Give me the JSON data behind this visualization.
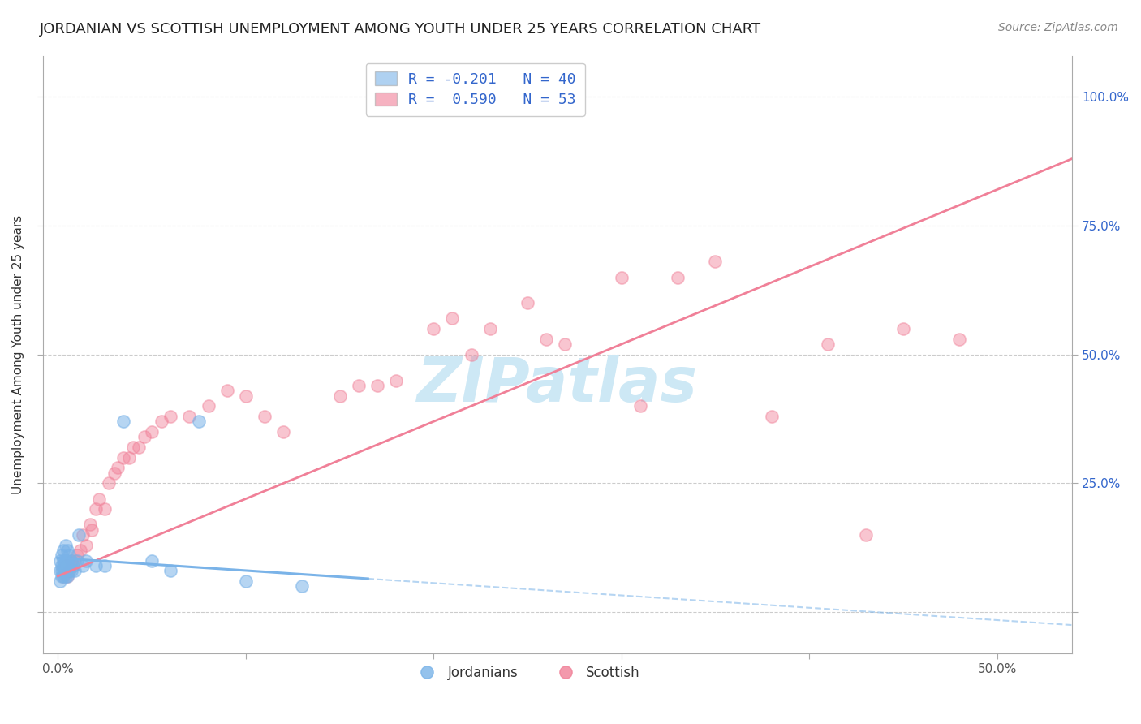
{
  "title": "JORDANIAN VS SCOTTISH UNEMPLOYMENT AMONG YOUTH UNDER 25 YEARS CORRELATION CHART",
  "source": "Source: ZipAtlas.com",
  "ylabel": "Unemployment Among Youth under 25 years",
  "x_ticks": [
    0.0,
    0.1,
    0.2,
    0.3,
    0.4,
    0.5
  ],
  "x_tick_labels": [
    "0.0%",
    "",
    "",
    "",
    "",
    "50.0%"
  ],
  "y_ticks": [
    0.0,
    0.25,
    0.5,
    0.75,
    1.0
  ],
  "y_tick_labels": [
    "",
    "25.0%",
    "50.0%",
    "75.0%",
    "100.0%"
  ],
  "xlim": [
    -0.008,
    0.54
  ],
  "ylim": [
    -0.08,
    1.08
  ],
  "jordan_R": -0.201,
  "jordan_N": 40,
  "scottish_R": 0.59,
  "scottish_N": 53,
  "jordan_color": "#7ab3e8",
  "scottish_color": "#f08098",
  "jordan_scatter_x": [
    0.001,
    0.001,
    0.001,
    0.002,
    0.002,
    0.002,
    0.002,
    0.003,
    0.003,
    0.003,
    0.003,
    0.003,
    0.004,
    0.004,
    0.004,
    0.004,
    0.004,
    0.005,
    0.005,
    0.005,
    0.005,
    0.006,
    0.006,
    0.006,
    0.007,
    0.007,
    0.008,
    0.009,
    0.01,
    0.011,
    0.013,
    0.015,
    0.02,
    0.025,
    0.035,
    0.05,
    0.06,
    0.075,
    0.1,
    0.13
  ],
  "jordan_scatter_y": [
    0.06,
    0.08,
    0.1,
    0.07,
    0.08,
    0.09,
    0.11,
    0.07,
    0.08,
    0.09,
    0.1,
    0.12,
    0.07,
    0.08,
    0.09,
    0.1,
    0.13,
    0.07,
    0.09,
    0.1,
    0.12,
    0.08,
    0.09,
    0.11,
    0.08,
    0.1,
    0.09,
    0.08,
    0.1,
    0.15,
    0.09,
    0.1,
    0.09,
    0.09,
    0.37,
    0.1,
    0.08,
    0.37,
    0.06,
    0.05
  ],
  "scottish_scatter_x": [
    0.003,
    0.004,
    0.005,
    0.006,
    0.007,
    0.008,
    0.009,
    0.01,
    0.012,
    0.013,
    0.015,
    0.017,
    0.018,
    0.02,
    0.022,
    0.025,
    0.027,
    0.03,
    0.032,
    0.035,
    0.038,
    0.04,
    0.043,
    0.046,
    0.05,
    0.055,
    0.06,
    0.07,
    0.08,
    0.09,
    0.1,
    0.11,
    0.12,
    0.15,
    0.16,
    0.17,
    0.18,
    0.2,
    0.21,
    0.22,
    0.23,
    0.25,
    0.26,
    0.27,
    0.3,
    0.31,
    0.33,
    0.35,
    0.38,
    0.41,
    0.43,
    0.45,
    0.48
  ],
  "scottish_scatter_y": [
    0.07,
    0.09,
    0.07,
    0.08,
    0.1,
    0.09,
    0.1,
    0.11,
    0.12,
    0.15,
    0.13,
    0.17,
    0.16,
    0.2,
    0.22,
    0.2,
    0.25,
    0.27,
    0.28,
    0.3,
    0.3,
    0.32,
    0.32,
    0.34,
    0.35,
    0.37,
    0.38,
    0.38,
    0.4,
    0.43,
    0.42,
    0.38,
    0.35,
    0.42,
    0.44,
    0.44,
    0.45,
    0.55,
    0.57,
    0.5,
    0.55,
    0.6,
    0.53,
    0.52,
    0.65,
    0.4,
    0.65,
    0.68,
    0.38,
    0.52,
    0.15,
    0.55,
    0.53
  ],
  "jordan_trend_x0": 0.0,
  "jordan_trend_y0": 0.105,
  "jordan_trend_x1": 0.165,
  "jordan_trend_y1": 0.065,
  "jordan_trend_dash_x0": 0.165,
  "jordan_trend_dash_y0": 0.065,
  "jordan_trend_dash_x1": 0.54,
  "jordan_trend_dash_y1": -0.025,
  "scottish_trend_x0": 0.0,
  "scottish_trend_y0": 0.07,
  "scottish_trend_x1": 0.54,
  "scottish_trend_y1": 0.88,
  "background_color": "#ffffff",
  "grid_color": "#cccccc",
  "axis_color": "#aaaaaa",
  "title_fontsize": 13,
  "label_fontsize": 11,
  "tick_fontsize": 11,
  "source_fontsize": 10,
  "watermark_text": "ZIPatlas",
  "watermark_color": "#cde8f5",
  "watermark_fontsize": 55,
  "legend_r_color": "#3366cc"
}
